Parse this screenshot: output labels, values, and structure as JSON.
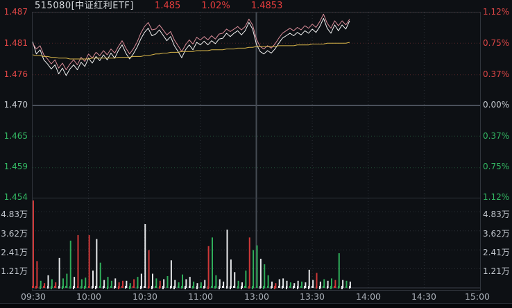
{
  "header": {
    "code_name": "515080[中证红利ETF]",
    "price": "1.485",
    "change_pct": "1.02%",
    "value2": "1.4853"
  },
  "axes": {
    "price_left": [
      "1.487",
      "1.481",
      "1.476",
      "1.470",
      "1.465",
      "1.459",
      "1.454"
    ],
    "pct_right": [
      "1.12%",
      "0.75%",
      "0.37%",
      "0.00%",
      "0.37%",
      "0.75%",
      "1.12%"
    ],
    "vol_left": [
      "4.83万",
      "3.62万",
      "2.41万",
      "1.21万"
    ],
    "vol_right": [
      "4.83万",
      "3.62万",
      "2.41万",
      "1.21万"
    ],
    "time": [
      "09:30",
      "10:00",
      "10:30",
      "11:00",
      "13:00",
      "13:30",
      "14:00",
      "14:30",
      "15:00"
    ]
  },
  "colors": {
    "up": "#e04747",
    "down": "#33b863",
    "flat": "#c8ccd2",
    "price_line": "#f2f2f2",
    "index_line": "#d98c98",
    "avg_line": "#d9b64a",
    "bar_up": "#d03838",
    "bar_down": "#2fae5a",
    "bar_flat": "#e6e8ea",
    "grid_up": "rgba(190,70,70,0.40)",
    "grid_down": "rgba(60,170,100,0.40)",
    "grid_gray": "rgba(160,170,180,0.22)",
    "zero_line": "#4a505a",
    "session_line": "#454b54"
  },
  "chart_data": {
    "type": "line",
    "title": "515080[中证红利ETF] intraday (分时)",
    "prev_close": 1.47,
    "last_price": 1.485,
    "change_pct": 1.02,
    "pct_axis_range": [
      -1.12,
      1.12
    ],
    "price_axis_range": [
      1.454,
      1.487
    ],
    "x_total_minutes": 240,
    "x_session_break_minute": 120,
    "data_end_minute": 170,
    "sample_step_minutes": 2,
    "grid": {
      "h_levels_pct": [
        1.12,
        0.75,
        0.37,
        0.0,
        -0.37,
        -0.75,
        -1.12
      ],
      "v_minutes": [
        30,
        60,
        90,
        120,
        150,
        180,
        210
      ]
    },
    "series": [
      {
        "name": "price-pct",
        "color_key": "price_line",
        "values": [
          0.77,
          0.62,
          0.67,
          0.55,
          0.5,
          0.44,
          0.49,
          0.38,
          0.45,
          0.36,
          0.44,
          0.49,
          0.43,
          0.52,
          0.47,
          0.57,
          0.51,
          0.59,
          0.54,
          0.61,
          0.55,
          0.63,
          0.57,
          0.66,
          0.73,
          0.63,
          0.56,
          0.62,
          0.7,
          0.8,
          0.88,
          0.93,
          0.84,
          0.86,
          0.91,
          0.845,
          0.78,
          0.83,
          0.72,
          0.65,
          0.575,
          0.67,
          0.73,
          0.67,
          0.76,
          0.73,
          0.775,
          0.73,
          0.78,
          0.745,
          0.8,
          0.81,
          0.87,
          0.83,
          0.87,
          0.9,
          0.85,
          0.9,
          1.0,
          0.92,
          0.74,
          0.65,
          0.62,
          0.66,
          0.63,
          0.68,
          0.75,
          0.81,
          0.84,
          0.87,
          0.84,
          0.88,
          0.85,
          0.9,
          0.87,
          0.92,
          0.88,
          0.95,
          1.05,
          0.93,
          0.87,
          0.97,
          0.9,
          0.97,
          0.92,
          1.02
        ]
      },
      {
        "name": "index-overlay-pct",
        "color_key": "index_line",
        "values": [
          0.75,
          0.68,
          0.72,
          0.61,
          0.56,
          0.5,
          0.55,
          0.45,
          0.51,
          0.43,
          0.5,
          0.55,
          0.49,
          0.58,
          0.53,
          0.62,
          0.57,
          0.64,
          0.6,
          0.66,
          0.61,
          0.68,
          0.63,
          0.71,
          0.78,
          0.69,
          0.62,
          0.68,
          0.76,
          0.87,
          0.95,
          1.0,
          0.91,
          0.92,
          0.97,
          0.91,
          0.85,
          0.89,
          0.79,
          0.72,
          0.65,
          0.73,
          0.79,
          0.74,
          0.82,
          0.79,
          0.83,
          0.79,
          0.84,
          0.8,
          0.86,
          0.87,
          0.92,
          0.89,
          0.92,
          0.95,
          0.91,
          0.95,
          1.04,
          0.97,
          0.8,
          0.71,
          0.68,
          0.72,
          0.69,
          0.74,
          0.81,
          0.87,
          0.9,
          0.93,
          0.9,
          0.94,
          0.91,
          0.96,
          0.93,
          0.98,
          0.94,
          1.01,
          1.1,
          0.99,
          0.93,
          1.02,
          0.96,
          1.02,
          0.97,
          1.04
        ]
      },
      {
        "name": "avg-price-pct",
        "color_key": "avg_line",
        "values": [
          0.61,
          0.6,
          0.6,
          0.59,
          0.59,
          0.58,
          0.58,
          0.57,
          0.57,
          0.57,
          0.56,
          0.56,
          0.56,
          0.56,
          0.56,
          0.56,
          0.57,
          0.57,
          0.57,
          0.57,
          0.57,
          0.57,
          0.57,
          0.58,
          0.58,
          0.58,
          0.58,
          0.59,
          0.59,
          0.59,
          0.6,
          0.6,
          0.61,
          0.62,
          0.62,
          0.63,
          0.63,
          0.64,
          0.64,
          0.64,
          0.65,
          0.65,
          0.65,
          0.65,
          0.66,
          0.66,
          0.66,
          0.66,
          0.67,
          0.67,
          0.67,
          0.67,
          0.68,
          0.68,
          0.68,
          0.69,
          0.69,
          0.69,
          0.7,
          0.7,
          0.71,
          0.71,
          0.71,
          0.71,
          0.71,
          0.71,
          0.72,
          0.72,
          0.72,
          0.72,
          0.72,
          0.73,
          0.73,
          0.73,
          0.73,
          0.74,
          0.74,
          0.74,
          0.74,
          0.75,
          0.75,
          0.75,
          0.75,
          0.75,
          0.75,
          0.76
        ]
      }
    ],
    "volume": {
      "unit": "万",
      "axis_max": 5.68,
      "gridline_values": [
        4.83,
        3.62,
        2.41,
        1.21
      ],
      "values": [
        5.55,
        1.7,
        0.45,
        0.3,
        0.8,
        0.55,
        0.35,
        1.9,
        0.6,
        0.9,
        3.0,
        0.7,
        3.35,
        0.55,
        0.65,
        3.35,
        1.1,
        3.1,
        1.6,
        0.5,
        0.7,
        0.45,
        0.6,
        0.35,
        0.45,
        0.45,
        0.3,
        0.55,
        0.7,
        0.9,
        4.05,
        2.4,
        0.9,
        0.6,
        0.45,
        0.55,
        0.75,
        1.75,
        0.5,
        0.35,
        0.85,
        0.55,
        0.7,
        0.4,
        0.3,
        0.35,
        0.5,
        2.65,
        3.2,
        0.8,
        0.55,
        0.4,
        3.7,
        1.8,
        1.0,
        0.45,
        0.35,
        1.1,
        3.2,
        2.4,
        2.7,
        1.85,
        1.5,
        0.8,
        0.4,
        0.3,
        0.55,
        0.6,
        0.45,
        0.35,
        0.3,
        0.45,
        0.4,
        0.35,
        1.15,
        0.5,
        0.95,
        0.4,
        0.55,
        0.45,
        0.6,
        0.5,
        2.2,
        0.5,
        0.45,
        0.4
      ],
      "colors": "rrgrwgrwgggwrggrwwgwggwrrwgrgwwrwgrwgwwggwwgwgwrggwwwwwgwgrggwggwrwwwgwwgwwwrwgwgrgwgw"
    }
  }
}
